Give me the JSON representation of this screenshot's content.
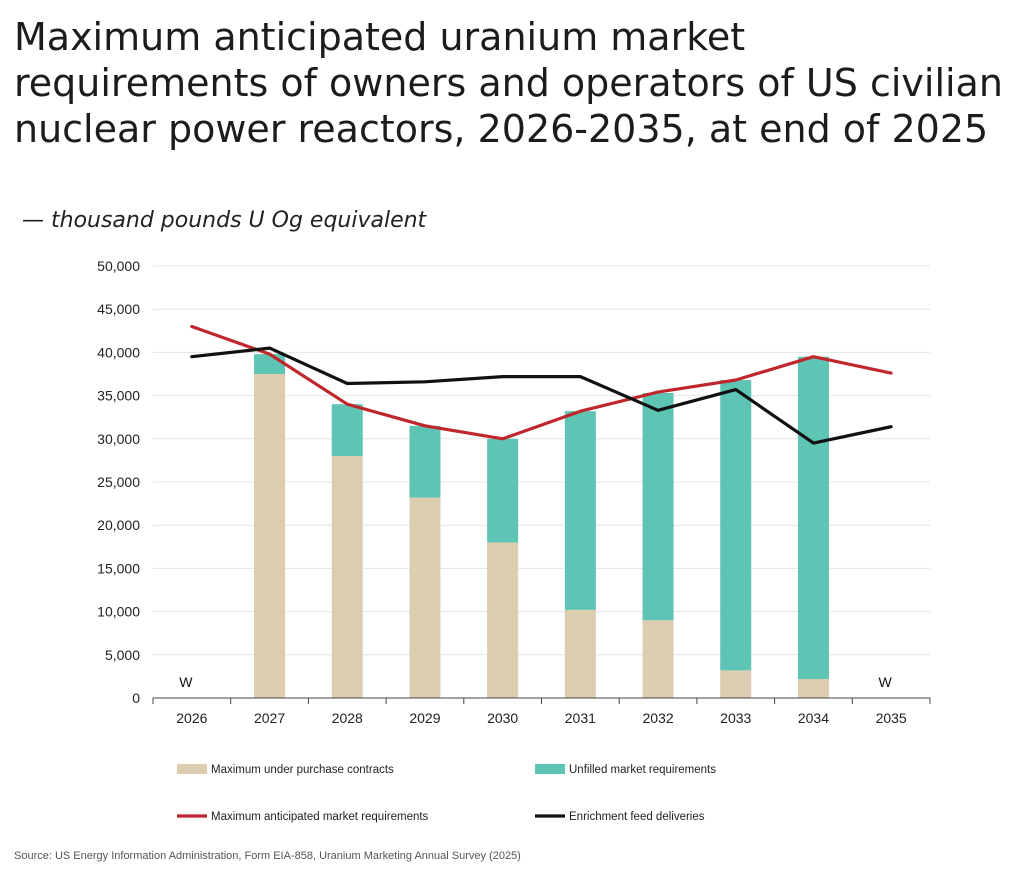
{
  "title": "Maximum anticipated uranium market requirements of owners and operators of US civilian nuclear power reactors, 2026-2035, at end of 2025",
  "subtitle": "— thousand pounds U Og equivalent",
  "source": "Source: US Energy Information Administration, Form EIA-858, Uranium Marketing Annual Survey (2025)",
  "chart_data": {
    "type": "bar",
    "title": "Maximum anticipated uranium market requirements of owners and operators of US civilian nuclear power reactors, 2026-2035, at end of 2025",
    "categories": [
      "2026",
      "2027",
      "2028",
      "2029",
      "2030",
      "2031",
      "2032",
      "2033",
      "2034",
      "2035"
    ],
    "ylim": [
      0,
      50000
    ],
    "yticks": [
      0,
      5000,
      10000,
      15000,
      20000,
      25000,
      30000,
      35000,
      40000,
      45000,
      50000
    ],
    "ytick_labels": [
      "0",
      "5,000",
      "10,000",
      "15,000",
      "20,000",
      "25,000",
      "30,000",
      "35,000",
      "40,000",
      "45,000",
      "50,000"
    ],
    "grid": true,
    "stacked_bars": [
      {
        "name": "Maximum under purchase contracts",
        "color": "#dccdb0",
        "values": [
          null,
          37500,
          28000,
          23200,
          18000,
          10200,
          9000,
          3200,
          2200,
          null
        ]
      },
      {
        "name": "Unfilled market requirements",
        "color": "#5ec4b3",
        "values": [
          null,
          2300,
          6000,
          8300,
          12000,
          23000,
          26300,
          33600,
          37300,
          null
        ]
      }
    ],
    "lines": [
      {
        "name": "Maximum anticipated market requirements",
        "color": "#c0272d",
        "values": [
          43000,
          39800,
          34000,
          31500,
          30000,
          33200,
          35400,
          36800,
          39500,
          37600
        ]
      },
      {
        "name": "Enrichment feed deliveries",
        "color": "#111111",
        "values": [
          39500,
          40500,
          36400,
          36600,
          37200,
          37200,
          33300,
          35700,
          29500,
          31400
        ]
      }
    ],
    "annotations": [
      {
        "category": "2026",
        "text": "W"
      },
      {
        "category": "2035",
        "text": "W"
      }
    ],
    "legend_position": "bottom"
  }
}
